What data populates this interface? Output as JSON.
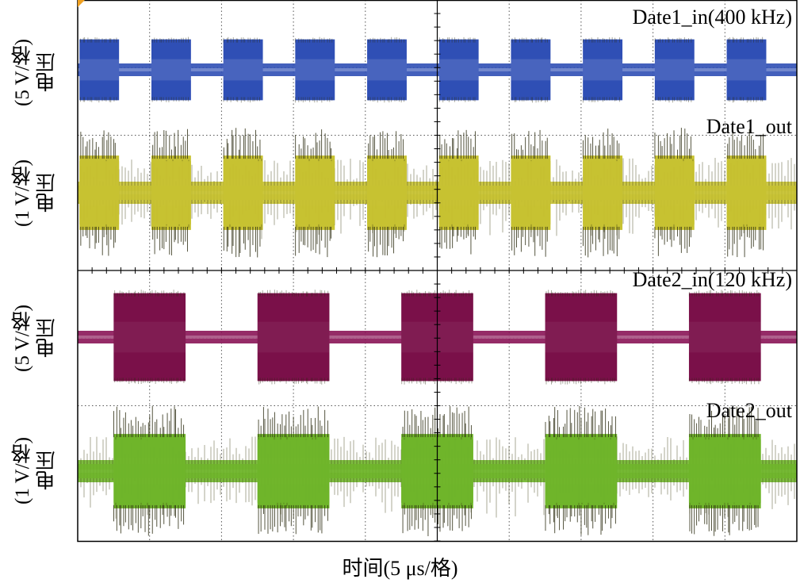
{
  "chart_data": [
    {
      "type": "line",
      "title": "Date1_in(400 kHz)",
      "ylabel_quantity": "电压",
      "ylabel_scale": "(5 V/格)",
      "xlabel": "时间(5 μs/格)",
      "color": "#2f4fb5",
      "burst_centers_div": [
        0.3,
        1.3,
        2.3,
        3.3,
        4.3,
        5.3,
        6.3,
        7.3,
        8.3,
        9.3
      ],
      "burst_width_div": 0.55,
      "low_level_div": 0.0,
      "high_amplitude_div": 0.45
    },
    {
      "type": "line",
      "title": "Date1_out",
      "ylabel_quantity": "电压",
      "ylabel_scale": "(1 V/格)",
      "color": "#c7c232",
      "burst_centers_div": [
        0.3,
        1.3,
        2.3,
        3.3,
        4.3,
        5.3,
        6.3,
        7.3,
        8.3,
        9.3
      ],
      "burst_width_div": 0.55,
      "low_level_div": 0.0,
      "high_amplitude_div": 0.55
    },
    {
      "type": "line",
      "title": "Date2_in(120 kHz)",
      "ylabel_quantity": "电压",
      "ylabel_scale": "(5 V/格)",
      "color": "#8a1457",
      "burst_centers_div": [
        1.0,
        3.0,
        5.0,
        7.0,
        9.0
      ],
      "burst_width_div": 1.0,
      "low_level_div": 0.0,
      "high_amplitude_div": 0.65
    },
    {
      "type": "line",
      "title": "Date2_out",
      "ylabel_quantity": "电压",
      "ylabel_scale": "(1 V/格)",
      "color": "#6fb52a",
      "burst_centers_div": [
        1.0,
        3.0,
        5.0,
        7.0,
        9.0
      ],
      "burst_width_div": 1.0,
      "low_level_div": 0.0,
      "high_amplitude_div": 0.55
    }
  ],
  "x_divisions": 10,
  "y_divisions": 8,
  "xlabel": "时间(5 μs/格)",
  "colors": {
    "frame": "#000000",
    "grid": "#555555",
    "marker": "#f0a020"
  }
}
